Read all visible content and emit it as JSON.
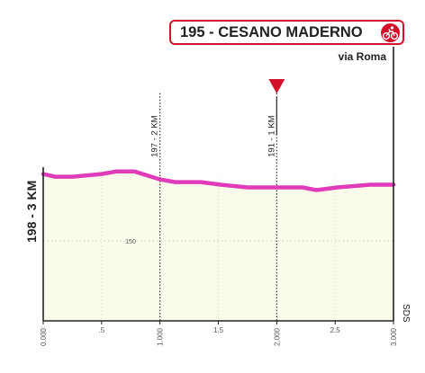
{
  "finish": {
    "title": "195 - CESANO MADERNO",
    "subtitle": "via Roma",
    "icon": "cyclist-icon",
    "accent": "#d3112b"
  },
  "side_title": "198 - 3 KM",
  "brand_mark": "SDS",
  "chart_data": {
    "type": "area",
    "x": [
      0.0,
      0.1,
      0.25,
      0.5,
      0.63,
      0.78,
      1.0,
      1.13,
      1.35,
      1.52,
      1.75,
      2.0,
      2.22,
      2.34,
      2.52,
      2.8,
      3.0
    ],
    "series": [
      {
        "values": [
          175,
          174,
          174,
          175,
          176,
          176,
          173,
          172,
          172,
          171,
          170,
          170,
          170,
          169,
          170,
          171,
          171
        ]
      }
    ],
    "ylim": [
      120,
      220
    ],
    "xlim": [
      0,
      3
    ],
    "grid_lines": [
      {
        "value": 150,
        "label": "150"
      }
    ],
    "x_tick_labels": [
      {
        "x": 0.0,
        "label": "0.000"
      },
      {
        "x": 0.5,
        "label": ".5"
      },
      {
        "x": 1.0,
        "label": "1.000"
      },
      {
        "x": 1.5,
        "label": "1.5"
      },
      {
        "x": 2.0,
        "label": "2.000"
      },
      {
        "x": 2.5,
        "label": "2.5"
      },
      {
        "x": 3.0,
        "label": "3.000"
      }
    ],
    "km_markers": [
      {
        "x": 1.0,
        "label": "197 - 2 KM"
      },
      {
        "x": 2.0,
        "label": "191 - 1 KM"
      }
    ],
    "flamme_rouge_x": 2.0,
    "colors": {
      "profile_line": "#e03bb8",
      "fill": "#fbfbeb",
      "flag": "#d3112b",
      "axis": "#222222"
    },
    "grid": true
  }
}
